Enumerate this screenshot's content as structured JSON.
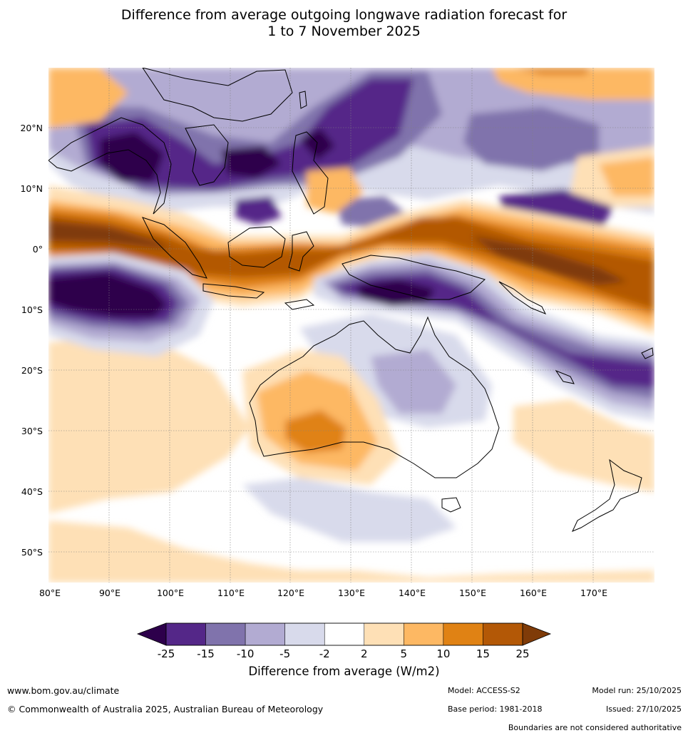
{
  "title": {
    "line1": "Difference from average outgoing longwave radiation forecast for",
    "line2": "1 to 7 November 2025"
  },
  "map": {
    "lon_labels": [
      "80°E",
      "90°E",
      "100°E",
      "110°E",
      "120°E",
      "130°E",
      "140°E",
      "150°E",
      "160°E",
      "170°E"
    ],
    "lat_labels": [
      "20°N",
      "10°N",
      "0°",
      "10°S",
      "20°S",
      "30°S",
      "40°S",
      "50°S"
    ]
  },
  "colorbar": {
    "tick_labels": [
      "-25",
      "-15",
      "-10",
      "-5",
      "-2",
      "2",
      "5",
      "10",
      "15",
      "25"
    ],
    "colors": {
      "below_min": "#2d004b",
      "bins": [
        "#542788",
        "#8073ac",
        "#b2abd2",
        "#d8daeb",
        "#ffffff",
        "#fee0b6",
        "#fdb863",
        "#e08214",
        "#b35806"
      ],
      "above_max": "#7f3b08"
    },
    "label": "Difference from average (W/m2)"
  },
  "footer": {
    "website": "www.bom.gov.au/climate",
    "copyright": "© Commonwealth of Australia 2025, Australian Bureau of Meteorology",
    "model": "Model: ACCESS-S2",
    "base_period": "Base period: 1981-2018",
    "model_run": "Model run: 25/10/2025",
    "issued": "Issued: 27/10/2025",
    "disclaimer": "Boundaries are not considered authoritative"
  }
}
